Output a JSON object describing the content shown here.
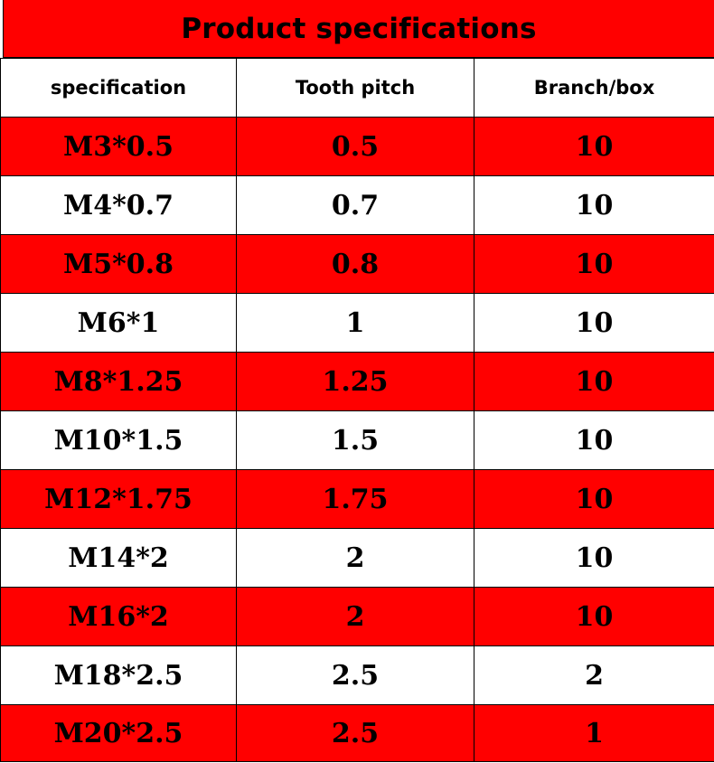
{
  "title": "Product specifications",
  "colors": {
    "accent": "#ff0000",
    "alt_row": "#ffffff",
    "text": "#000000",
    "border": "#000000"
  },
  "table": {
    "headers": [
      "specification",
      "Tooth pitch",
      "Branch/box"
    ],
    "rows": [
      {
        "spec": "M3*0.5",
        "pitch": "0.5",
        "per_box": "10"
      },
      {
        "spec": "M4*0.7",
        "pitch": "0.7",
        "per_box": "10"
      },
      {
        "spec": "M5*0.8",
        "pitch": "0.8",
        "per_box": "10"
      },
      {
        "spec": "M6*1",
        "pitch": "1",
        "per_box": "10"
      },
      {
        "spec": "M8*1.25",
        "pitch": "1.25",
        "per_box": "10"
      },
      {
        "spec": "M10*1.5",
        "pitch": "1.5",
        "per_box": "10"
      },
      {
        "spec": "M12*1.75",
        "pitch": "1.75",
        "per_box": "10"
      },
      {
        "spec": "M14*2",
        "pitch": "2",
        "per_box": "10"
      },
      {
        "spec": "M16*2",
        "pitch": "2",
        "per_box": "10"
      },
      {
        "spec": "M18*2.5",
        "pitch": "2.5",
        "per_box": "2"
      },
      {
        "spec": "M20*2.5",
        "pitch": "2.5",
        "per_box": "1"
      }
    ]
  }
}
